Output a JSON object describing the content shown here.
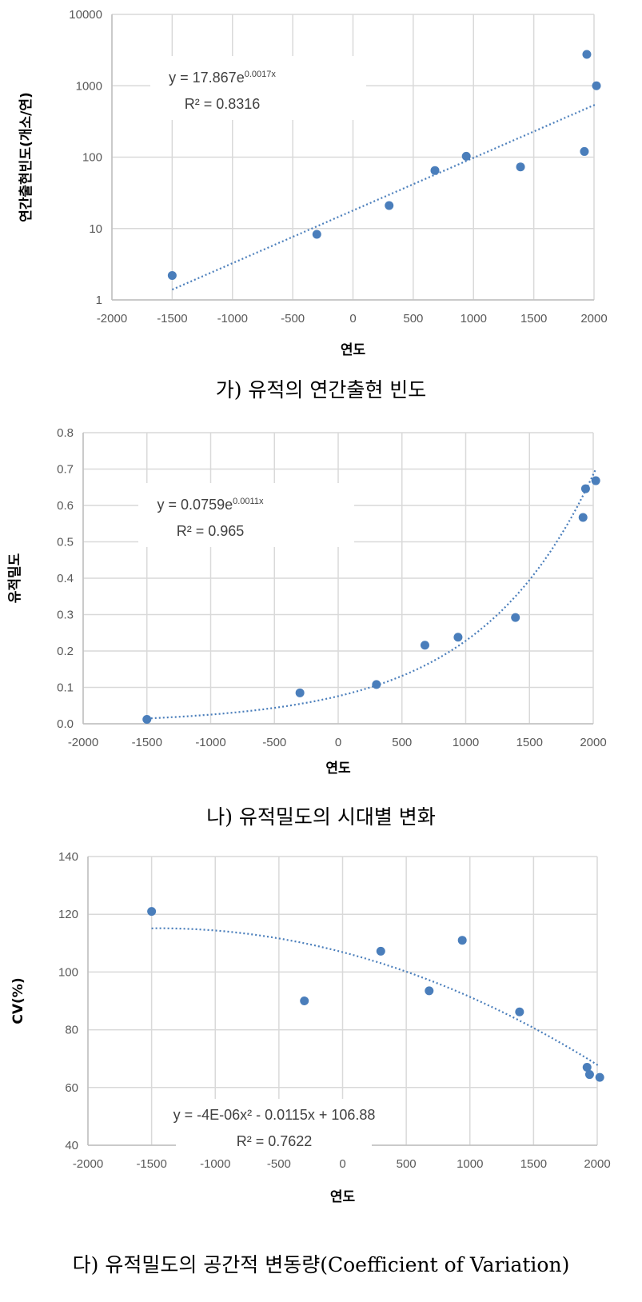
{
  "colors": {
    "marker": "#4a7ebb",
    "trend": "#4a7ebb",
    "grid": "#d9d9d9"
  },
  "chart_data": [
    {
      "type": "scatter",
      "caption": "가) 유적의 연간출현 빈도",
      "xlabel": "연도",
      "ylabel": "연간출현빈도(개소/연)",
      "xlim": [
        -2000,
        2000
      ],
      "ylim": [
        1,
        10000
      ],
      "yscale": "log",
      "grid": true,
      "xticks": [
        "-2000",
        "-1500",
        "-1000",
        "-500",
        "0",
        "500",
        "1000",
        "1500",
        "2000"
      ],
      "yticks": [
        "1",
        "10",
        "100",
        "1000",
        "10000"
      ],
      "x": [
        -1500,
        -300,
        300,
        680,
        940,
        1390,
        1920,
        1940,
        2020
      ],
      "y": [
        2.2,
        8.3,
        21,
        65,
        103,
        73,
        120,
        2750,
        1000
      ],
      "trendline": {
        "type": "exponential",
        "a": 17.867,
        "b": 0.0017,
        "equation_base": "y = 17.867e",
        "equation_exp": "0.0017x",
        "r2": "R² = 0.8316"
      }
    },
    {
      "type": "scatter",
      "caption": "나) 유적밀도의 시대별 변화",
      "xlabel": "연도",
      "ylabel": "유적밀도",
      "xlim": [
        -2000,
        2000
      ],
      "ylim": [
        0,
        0.8
      ],
      "yscale": "linear",
      "grid": true,
      "xticks": [
        "-2000",
        "-1500",
        "-1000",
        "-500",
        "0",
        "500",
        "1000",
        "1500",
        "2000"
      ],
      "yticks": [
        "0.0",
        "0.1",
        "0.2",
        "0.3",
        "0.4",
        "0.5",
        "0.6",
        "0.7",
        "0.8"
      ],
      "x": [
        -1500,
        -300,
        300,
        680,
        940,
        1390,
        1920,
        1940,
        2020
      ],
      "y": [
        0.012,
        0.085,
        0.108,
        0.216,
        0.238,
        0.292,
        0.567,
        0.646,
        0.668
      ],
      "trendline": {
        "type": "exponential",
        "a": 0.0759,
        "b": 0.0011,
        "equation_base": "y = 0.0759e",
        "equation_exp": "0.0011x",
        "r2": "R² = 0.965"
      }
    },
    {
      "type": "scatter",
      "caption": "다) 유적밀도의 공간적 변동량(Coefficient of Variation)",
      "xlabel": "연도",
      "ylabel": "CV(%)",
      "xlim": [
        -2000,
        2000
      ],
      "ylim": [
        40,
        140
      ],
      "yscale": "linear",
      "grid": true,
      "xticks": [
        "-2000",
        "-1500",
        "-1000",
        "-500",
        "0",
        "500",
        "1000",
        "1500",
        "2000"
      ],
      "yticks": [
        "40",
        "60",
        "80",
        "100",
        "120",
        "140"
      ],
      "x": [
        -1500,
        -300,
        300,
        680,
        940,
        1390,
        1920,
        1940,
        2020
      ],
      "y": [
        121,
        90,
        107.2,
        93.5,
        111,
        86.2,
        67,
        64.5,
        63.5
      ],
      "trendline": {
        "type": "polynomial",
        "coef": [
          -4e-06,
          -0.0115,
          106.88
        ],
        "equation_base": "y = -4E-06x² - 0.0115x + 106.88",
        "equation_exp": "",
        "r2": "R² = 0.7622"
      }
    }
  ]
}
